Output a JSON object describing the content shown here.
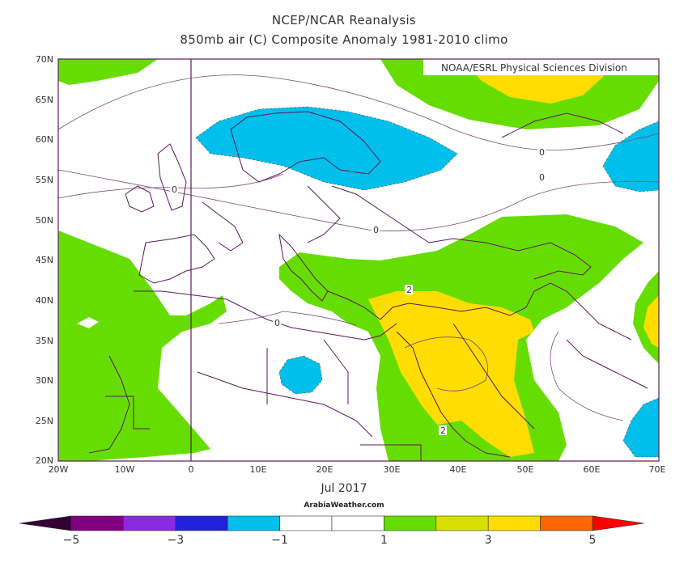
{
  "title": "NCEP/NCAR Reanalysis",
  "subtitle": "850mb air (C) Composite Anomaly 1981-2010 climo",
  "credit": "NOAA/ESRL Physical Sciences Division",
  "date": "Jul 2017",
  "site": "ArabiaWeather.com",
  "lat_labels": [
    "70N",
    "65N",
    "60N",
    "55N",
    "50N",
    "45N",
    "40N",
    "35N",
    "30N",
    "25N",
    "20N"
  ],
  "lon_labels": [
    "20W",
    "10W",
    "0",
    "10E",
    "20E",
    "30E",
    "40E",
    "50E",
    "60E",
    "70E"
  ],
  "contour_labels": [
    "0",
    "0",
    "0",
    "0",
    "0",
    "2",
    "2"
  ],
  "colorbar": {
    "colors": [
      "#330033",
      "#7f0080",
      "#8a2be2",
      "#2020dd",
      "#00bfea",
      "#ffffff",
      "#ffffff",
      "#66dd00",
      "#d8e000",
      "#ffdd00",
      "#ff6600",
      "#ff0000"
    ],
    "tick_labels": [
      "-5",
      "-3",
      "-1",
      "1",
      "3",
      "5"
    ]
  },
  "colors": {
    "frame": "#5a1a5a",
    "coast": "#5a1a5a",
    "green": "#66dd00",
    "yellow": "#ffdd00",
    "cyan": "#00bfea"
  }
}
